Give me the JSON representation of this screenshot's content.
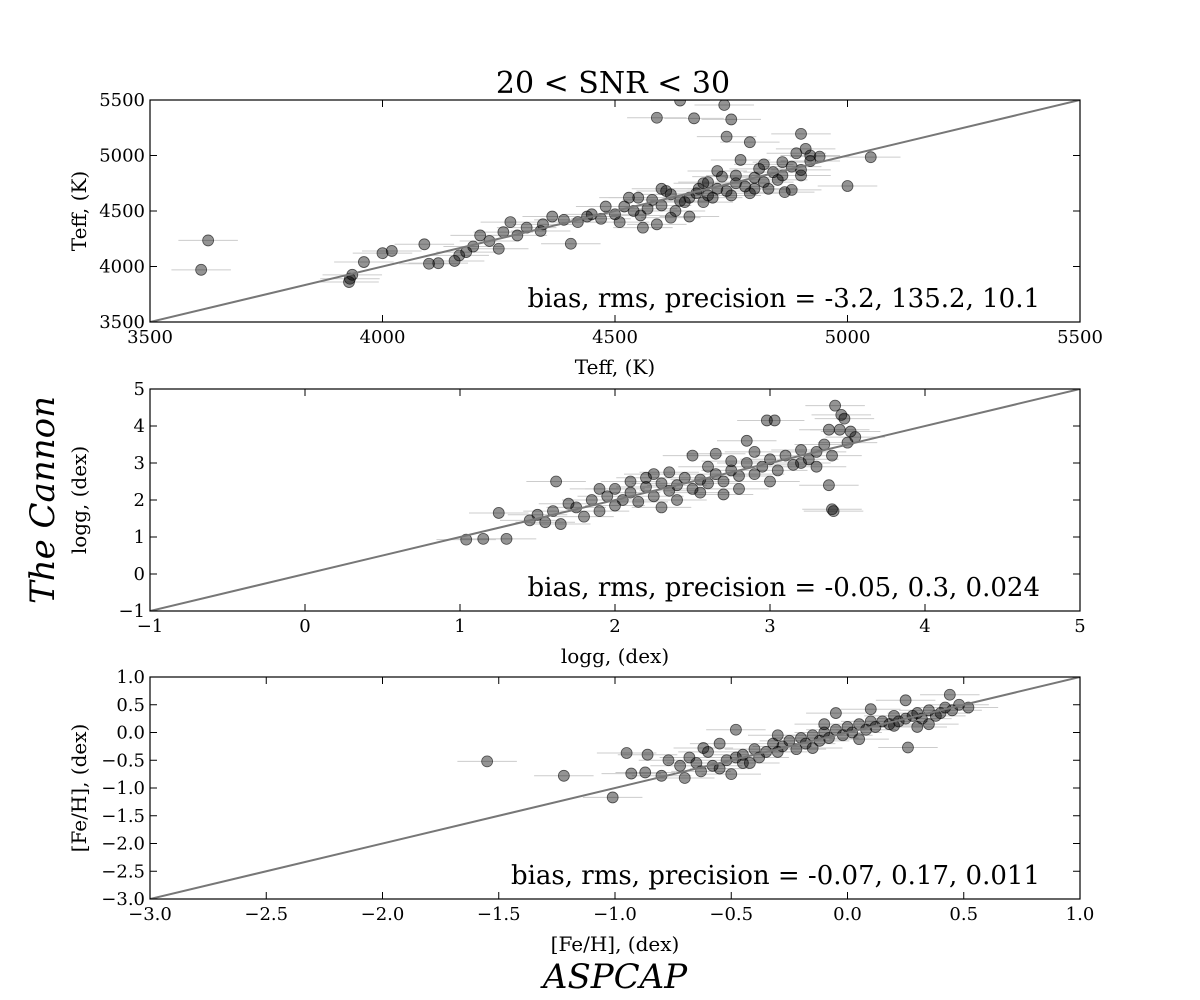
{
  "figure": {
    "suptitle": "20 < SNR < 30",
    "ylabel": "The Cannon",
    "xlabel": "ASPCAP"
  },
  "chart_data": [
    {
      "type": "scatter",
      "xlabel": "Teff, (K)",
      "ylabel": "Teff, (K)",
      "xlim": [
        3500,
        5500
      ],
      "ylim": [
        3500,
        5500
      ],
      "xticks": [
        "3500",
        "4000",
        "4500",
        "5000",
        "5500"
      ],
      "yticks": [
        "3500",
        "4000",
        "4500",
        "5000",
        "5500"
      ],
      "annotation": "bias, rms, precision = -3.2, 135.2, 10.1",
      "one_to_one_line": true,
      "marker_color": "#000000",
      "errorbar_color": "#cccccc",
      "points": [
        [
          3610,
          3970
        ],
        [
          3625,
          4235
        ],
        [
          3928,
          3860
        ],
        [
          3930,
          3890
        ],
        [
          3935,
          3925
        ],
        [
          3960,
          4040
        ],
        [
          4000,
          4120
        ],
        [
          4020,
          4140
        ],
        [
          4090,
          4200
        ],
        [
          4100,
          4025
        ],
        [
          4120,
          4030
        ],
        [
          4155,
          4050
        ],
        [
          4165,
          4100
        ],
        [
          4180,
          4130
        ],
        [
          4195,
          4180
        ],
        [
          4210,
          4280
        ],
        [
          4230,
          4230
        ],
        [
          4250,
          4160
        ],
        [
          4260,
          4310
        ],
        [
          4275,
          4400
        ],
        [
          4290,
          4280
        ],
        [
          4310,
          4350
        ],
        [
          4340,
          4320
        ],
        [
          4365,
          4450
        ],
        [
          4390,
          4420
        ],
        [
          4405,
          4205
        ],
        [
          4420,
          4400
        ],
        [
          4450,
          4470
        ],
        [
          4470,
          4430
        ],
        [
          4500,
          4470
        ],
        [
          4520,
          4540
        ],
        [
          4540,
          4500
        ],
        [
          4555,
          4460
        ],
        [
          4580,
          4600
        ],
        [
          4600,
          4550
        ],
        [
          4620,
          4650
        ],
        [
          4640,
          4590
        ],
        [
          4660,
          4620
        ],
        [
          4680,
          4700
        ],
        [
          4700,
          4640
        ],
        [
          4720,
          4700
        ],
        [
          4740,
          4680
        ],
        [
          4760,
          4750
        ],
        [
          4780,
          4720
        ],
        [
          4800,
          4800
        ],
        [
          4820,
          4760
        ],
        [
          4840,
          4850
        ],
        [
          4860,
          4820
        ],
        [
          4880,
          4900
        ],
        [
          4900,
          4870
        ],
        [
          4920,
          4950
        ],
        [
          4550,
          4620
        ],
        [
          4600,
          4700
        ],
        [
          4650,
          4580
        ],
        [
          4700,
          4760
        ],
        [
          4750,
          4640
        ],
        [
          4800,
          4700
        ],
        [
          4850,
          4780
        ],
        [
          4890,
          5020
        ],
        [
          4910,
          5060
        ],
        [
          4940,
          4990
        ],
        [
          4865,
          4670
        ],
        [
          4880,
          4690
        ],
        [
          4900,
          4820
        ],
        [
          4510,
          4400
        ],
        [
          4530,
          4620
        ],
        [
          4570,
          4520
        ],
        [
          4610,
          4680
        ],
        [
          4630,
          4500
        ],
        [
          4675,
          4660
        ],
        [
          4690,
          4580
        ],
        [
          4710,
          4620
        ],
        [
          4730,
          4810
        ],
        [
          4770,
          4960
        ],
        [
          4790,
          4660
        ],
        [
          4810,
          4880
        ],
        [
          4830,
          4700
        ],
        [
          4345,
          4380
        ],
        [
          4440,
          4450
        ],
        [
          4480,
          4540
        ],
        [
          4560,
          4350
        ],
        [
          4590,
          4380
        ],
        [
          4620,
          4440
        ],
        [
          4660,
          4450
        ],
        [
          4690,
          4750
        ],
        [
          4720,
          4860
        ],
        [
          4760,
          4820
        ],
        [
          4640,
          5495
        ],
        [
          4670,
          5335
        ],
        [
          4590,
          5340
        ],
        [
          4735,
          5455
        ],
        [
          4750,
          5325
        ],
        [
          4740,
          5170
        ],
        [
          4790,
          5120
        ],
        [
          4900,
          5195
        ],
        [
          5050,
          4985
        ],
        [
          5000,
          4725
        ],
        [
          4920,
          5000
        ],
        [
          4860,
          4940
        ],
        [
          4820,
          4920
        ]
      ]
    },
    {
      "type": "scatter",
      "xlabel": "logg, (dex)",
      "ylabel": "logg, (dex)",
      "xlim": [
        -1,
        5
      ],
      "ylim": [
        -1,
        5
      ],
      "xticks": [
        "−1",
        "0",
        "1",
        "2",
        "3",
        "4",
        "5"
      ],
      "yticks": [
        "−1",
        "0",
        "1",
        "2",
        "3",
        "4",
        "5"
      ],
      "annotation": "bias, rms, precision = -0.05, 0.3, 0.024",
      "one_to_one_line": true,
      "marker_color": "#000000",
      "errorbar_color": "#cccccc",
      "points": [
        [
          1.04,
          0.93
        ],
        [
          1.15,
          0.95
        ],
        [
          1.25,
          1.65
        ],
        [
          1.3,
          0.95
        ],
        [
          1.45,
          1.45
        ],
        [
          1.5,
          1.6
        ],
        [
          1.55,
          1.4
        ],
        [
          1.6,
          1.7
        ],
        [
          1.62,
          2.5
        ],
        [
          1.65,
          1.35
        ],
        [
          1.7,
          1.9
        ],
        [
          1.75,
          1.8
        ],
        [
          1.8,
          1.55
        ],
        [
          1.85,
          2.0
        ],
        [
          1.9,
          1.7
        ],
        [
          1.95,
          2.1
        ],
        [
          2.0,
          1.85
        ],
        [
          2.05,
          2.0
        ],
        [
          2.1,
          2.2
        ],
        [
          2.15,
          1.95
        ],
        [
          2.2,
          2.35
        ],
        [
          2.25,
          2.1
        ],
        [
          2.3,
          2.45
        ],
        [
          2.35,
          2.25
        ],
        [
          2.4,
          2.4
        ],
        [
          2.45,
          2.6
        ],
        [
          2.5,
          2.3
        ],
        [
          2.55,
          2.55
        ],
        [
          2.6,
          2.45
        ],
        [
          2.65,
          2.7
        ],
        [
          2.7,
          2.5
        ],
        [
          2.75,
          2.8
        ],
        [
          2.8,
          2.65
        ],
        [
          2.85,
          3.0
        ],
        [
          2.9,
          2.7
        ],
        [
          2.95,
          2.9
        ],
        [
          3.0,
          3.1
        ],
        [
          3.05,
          2.8
        ],
        [
          3.1,
          3.2
        ],
        [
          3.15,
          2.95
        ],
        [
          3.2,
          3.35
        ],
        [
          3.25,
          3.1
        ],
        [
          3.3,
          3.3
        ],
        [
          3.35,
          3.5
        ],
        [
          3.4,
          3.2
        ],
        [
          3.45,
          3.9
        ],
        [
          3.5,
          3.55
        ],
        [
          3.55,
          3.7
        ],
        [
          2.2,
          2.6
        ],
        [
          2.4,
          2.0
        ],
        [
          2.6,
          2.9
        ],
        [
          2.8,
          2.3
        ],
        [
          3.0,
          2.5
        ],
        [
          2.3,
          1.8
        ],
        [
          2.9,
          3.3
        ],
        [
          2.7,
          2.15
        ],
        [
          2.5,
          3.2
        ],
        [
          2.1,
          2.5
        ],
        [
          1.9,
          2.3
        ],
        [
          2.35,
          2.75
        ],
        [
          2.55,
          2.2
        ],
        [
          2.75,
          3.05
        ],
        [
          3.2,
          3.0
        ],
        [
          3.3,
          2.9
        ],
        [
          2.98,
          4.15
        ],
        [
          3.03,
          4.15
        ],
        [
          3.42,
          4.55
        ],
        [
          3.46,
          4.3
        ],
        [
          3.48,
          4.2
        ],
        [
          3.38,
          3.9
        ],
        [
          3.52,
          3.85
        ],
        [
          3.38,
          2.4
        ],
        [
          3.4,
          1.75
        ],
        [
          3.41,
          1.7
        ],
        [
          2.85,
          3.6
        ],
        [
          2.65,
          3.25
        ],
        [
          2.0,
          2.3
        ],
        [
          2.25,
          2.7
        ]
      ]
    },
    {
      "type": "scatter",
      "xlabel": "[Fe/H], (dex)",
      "ylabel": "[Fe/H], (dex)",
      "xlim": [
        -3.0,
        1.0
      ],
      "ylim": [
        -3.0,
        1.0
      ],
      "xticks": [
        "−3.0",
        "−2.5",
        "−2.0",
        "−1.5",
        "−1.0",
        "−0.5",
        "0.0",
        "0.5",
        "1.0"
      ],
      "yticks": [
        "−3.0",
        "−2.5",
        "−2.0",
        "−1.5",
        "−1.0",
        "−0.5",
        "0.0",
        "0.5",
        "1.0"
      ],
      "annotation": "bias, rms, precision = -0.07, 0.17, 0.011",
      "one_to_one_line": true,
      "marker_color": "#000000",
      "errorbar_color": "#cccccc",
      "points": [
        [
          -1.55,
          -0.52
        ],
        [
          -1.22,
          -0.78
        ],
        [
          -1.01,
          -1.17
        ],
        [
          -0.95,
          -0.37
        ],
        [
          -0.93,
          -0.74
        ],
        [
          -0.87,
          -0.72
        ],
        [
          -0.86,
          -0.4
        ],
        [
          -0.8,
          -0.78
        ],
        [
          -0.77,
          -0.5
        ],
        [
          -0.72,
          -0.6
        ],
        [
          -0.7,
          -0.82
        ],
        [
          -0.68,
          -0.45
        ],
        [
          -0.65,
          -0.55
        ],
        [
          -0.63,
          -0.7
        ],
        [
          -0.6,
          -0.35
        ],
        [
          -0.58,
          -0.6
        ],
        [
          -0.55,
          -0.65
        ],
        [
          -0.52,
          -0.5
        ],
        [
          -0.5,
          -0.75
        ],
        [
          -0.48,
          -0.45
        ],
        [
          -0.45,
          -0.4
        ],
        [
          -0.42,
          -0.55
        ],
        [
          -0.4,
          -0.3
        ],
        [
          -0.38,
          -0.45
        ],
        [
          -0.35,
          -0.35
        ],
        [
          -0.32,
          -0.2
        ],
        [
          -0.3,
          -0.35
        ],
        [
          -0.28,
          -0.25
        ],
        [
          -0.25,
          -0.15
        ],
        [
          -0.22,
          -0.3
        ],
        [
          -0.2,
          -0.1
        ],
        [
          -0.18,
          -0.2
        ],
        [
          -0.15,
          -0.05
        ],
        [
          -0.12,
          -0.15
        ],
        [
          -0.1,
          0.0
        ],
        [
          -0.08,
          -0.1
        ],
        [
          -0.05,
          0.05
        ],
        [
          -0.02,
          -0.05
        ],
        [
          0.0,
          0.1
        ],
        [
          0.02,
          0.0
        ],
        [
          0.05,
          0.15
        ],
        [
          0.08,
          0.05
        ],
        [
          0.1,
          0.2
        ],
        [
          0.12,
          0.1
        ],
        [
          0.15,
          0.2
        ],
        [
          0.18,
          0.15
        ],
        [
          0.2,
          0.3
        ],
        [
          0.22,
          0.2
        ],
        [
          0.25,
          0.25
        ],
        [
          0.28,
          0.3
        ],
        [
          0.3,
          0.35
        ],
        [
          0.32,
          0.25
        ],
        [
          0.35,
          0.4
        ],
        [
          0.38,
          0.3
        ],
        [
          0.4,
          0.35
        ],
        [
          0.42,
          0.45
        ],
        [
          0.45,
          0.4
        ],
        [
          0.48,
          0.5
        ],
        [
          0.52,
          0.45
        ],
        [
          0.44,
          0.68
        ],
        [
          0.25,
          0.58
        ],
        [
          0.26,
          -0.27
        ],
        [
          -0.48,
          0.05
        ],
        [
          -0.55,
          -0.2
        ],
        [
          -0.05,
          0.35
        ],
        [
          0.1,
          0.42
        ],
        [
          0.2,
          0.12
        ],
        [
          -0.1,
          0.15
        ],
        [
          -0.3,
          -0.05
        ],
        [
          0.35,
          0.15
        ],
        [
          -0.45,
          -0.55
        ],
        [
          -0.62,
          -0.28
        ],
        [
          -0.15,
          -0.28
        ],
        [
          0.05,
          -0.12
        ],
        [
          0.3,
          0.1
        ]
      ]
    }
  ]
}
